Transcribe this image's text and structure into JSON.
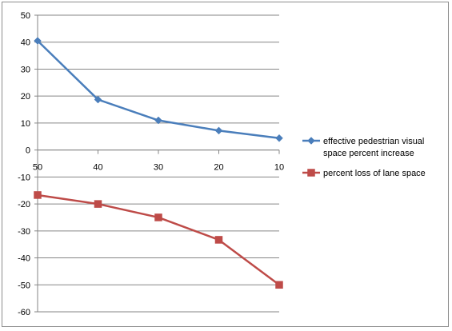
{
  "chart_data": {
    "type": "line",
    "categories": [
      "50",
      "40",
      "30",
      "20",
      "10"
    ],
    "series": [
      {
        "name": "effective pedestrian visual space percent increase",
        "legend_lines": [
          "effective pedestrian visual",
          "space percent increase"
        ],
        "values": [
          40.5,
          18.7,
          11.0,
          7.2,
          4.4
        ],
        "color": "#4a7ebb",
        "marker": "diamond"
      },
      {
        "name": "percent loss of lane space",
        "legend_lines": [
          "percent loss of lane space"
        ],
        "values": [
          -16.7,
          -20.0,
          -25.0,
          -33.3,
          -50.0
        ],
        "color": "#be4b48",
        "marker": "square"
      }
    ],
    "ylim": [
      -60,
      50
    ],
    "yticks": [
      50,
      40,
      30,
      20,
      10,
      0,
      -10,
      -20,
      -30,
      -40,
      -50,
      -60
    ],
    "grid": true,
    "legend_position": "right",
    "title": "",
    "xlabel": "",
    "ylabel": ""
  }
}
